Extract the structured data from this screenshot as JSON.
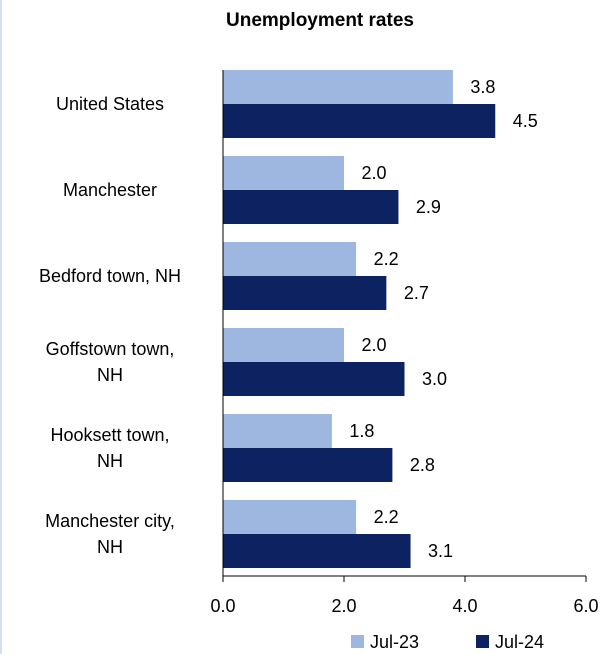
{
  "chart_data": {
    "type": "bar",
    "orientation": "horizontal",
    "title": "Unemployment rates",
    "xlabel": "",
    "ylabel": "",
    "categories": [
      [
        "United States"
      ],
      [
        "Manchester"
      ],
      [
        "Bedford town, NH"
      ],
      [
        "Goffstown town,",
        "NH"
      ],
      [
        "Hooksett town,",
        "NH"
      ],
      [
        "Manchester city,",
        "NH"
      ]
    ],
    "series": [
      {
        "name": "Jul-23",
        "color": "#9db7e0",
        "values": [
          3.8,
          2.0,
          2.2,
          2.0,
          1.8,
          2.2
        ],
        "labels": [
          "3.8",
          "2.0",
          "2.2",
          "2.0",
          "1.8",
          "2.2"
        ]
      },
      {
        "name": "Jul-24",
        "color": "#0d2261",
        "values": [
          4.5,
          2.9,
          2.7,
          3.0,
          2.8,
          3.1
        ],
        "labels": [
          "4.5",
          "2.9",
          "2.7",
          "3.0",
          "2.8",
          "3.1"
        ]
      }
    ],
    "xlim": [
      0,
      6
    ],
    "xticks": [
      "0.0",
      "2.0",
      "4.0",
      "6.0"
    ],
    "xtick_values": [
      0,
      2,
      4,
      6
    ],
    "grid": false,
    "legend_position": "bottom-right"
  }
}
